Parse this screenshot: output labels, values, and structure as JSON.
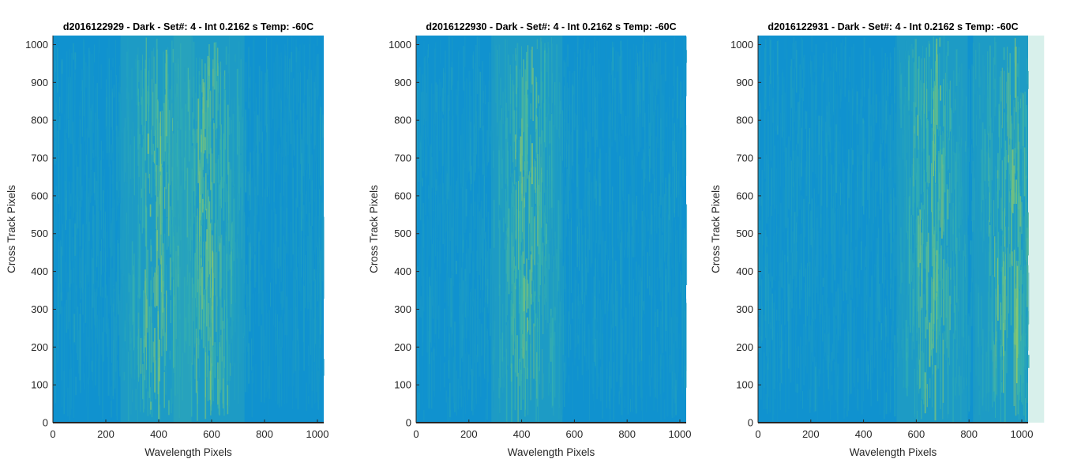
{
  "chart_data": [
    {
      "type": "heatmap",
      "title": "d2016122929 - Dark - Set#: 4 - Int 0.2162 s Temp: -60C",
      "xlabel": "Wavelength Pixels",
      "ylabel": "Cross Track Pixels",
      "xlim": [
        0,
        1024
      ],
      "ylim": [
        0,
        1024
      ],
      "xticks": [
        "0",
        "200",
        "400",
        "600",
        "800",
        "1000"
      ],
      "yticks": [
        "0",
        "100",
        "200",
        "300",
        "400",
        "500",
        "600",
        "700",
        "800",
        "900",
        "1000"
      ],
      "xtick_values": [
        0,
        200,
        400,
        600,
        800,
        1000
      ],
      "ytick_values": [
        0,
        100,
        200,
        300,
        400,
        500,
        600,
        700,
        800,
        900,
        1000
      ],
      "bright_bands_x": [
        390,
        590
      ],
      "colormap": "parula",
      "colors": {
        "base": "#1092cf",
        "bright": "#4cb9a3",
        "hot": "#8dc96c"
      },
      "grid": false
    },
    {
      "type": "heatmap",
      "title": "d2016122930 - Dark - Set#: 4 - Int 0.2162 s Temp: -60C",
      "xlabel": "Wavelength Pixels",
      "ylabel": "Cross Track Pixels",
      "xlim": [
        0,
        1024
      ],
      "ylim": [
        0,
        1024
      ],
      "xticks": [
        "0",
        "200",
        "400",
        "600",
        "800",
        "1000"
      ],
      "yticks": [
        "0",
        "100",
        "200",
        "300",
        "400",
        "500",
        "600",
        "700",
        "800",
        "900",
        "1000"
      ],
      "xtick_values": [
        0,
        200,
        400,
        600,
        800,
        1000
      ],
      "ytick_values": [
        0,
        100,
        200,
        300,
        400,
        500,
        600,
        700,
        800,
        900,
        1000
      ],
      "bright_bands_x": [
        420
      ],
      "colormap": "parula",
      "colors": {
        "base": "#1092cf",
        "bright": "#4cb9a3",
        "hot": "#8dc96c"
      },
      "grid": false
    },
    {
      "type": "heatmap",
      "title": "d2016122931 - Dark - Set#: 4 - Int 0.2162 s Temp: -60C",
      "xlabel": "Wavelength Pixels",
      "ylabel": "Cross Track Pixels",
      "xlim": [
        0,
        1024
      ],
      "ylim": [
        0,
        1024
      ],
      "xticks": [
        "0",
        "200",
        "400",
        "600",
        "800",
        "1000"
      ],
      "yticks": [
        "0",
        "100",
        "200",
        "300",
        "400",
        "500",
        "600",
        "700",
        "800",
        "900",
        "1000"
      ],
      "xtick_values": [
        0,
        200,
        400,
        600,
        800,
        1000
      ],
      "ytick_values": [
        0,
        100,
        200,
        300,
        400,
        500,
        600,
        700,
        800,
        900,
        1000
      ],
      "bright_bands_x": [
        660,
        950
      ],
      "colormap": "parula",
      "colors": {
        "base": "#1092cf",
        "bright": "#4cb9a3",
        "hot": "#8dc96c"
      },
      "grid": false
    }
  ]
}
